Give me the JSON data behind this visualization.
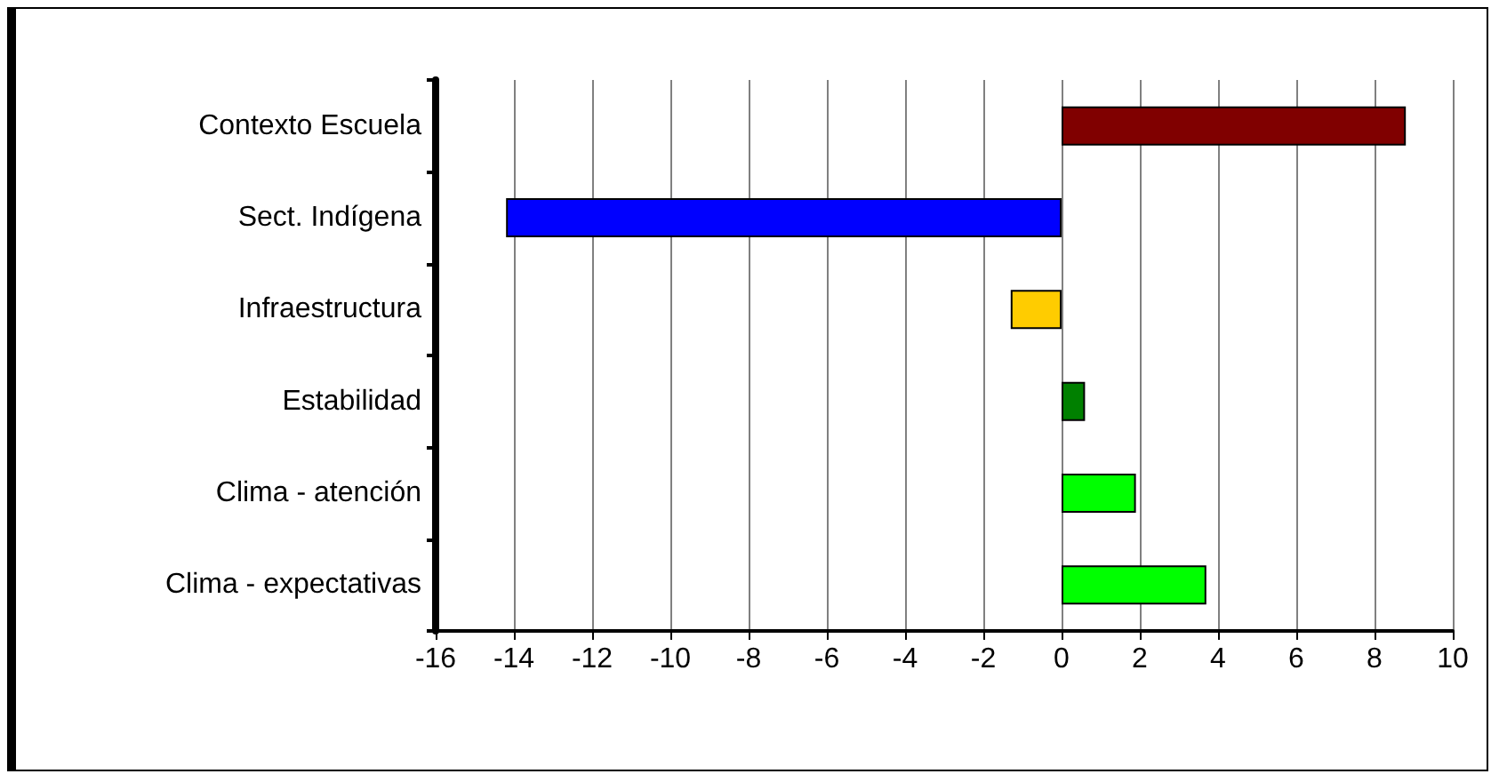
{
  "chart_data": {
    "type": "bar",
    "orientation": "horizontal",
    "categories": [
      "Contexto Escuela",
      "Sect. Indígena",
      "Infraestructura",
      "Estabilidad",
      "Clima - atención",
      "Clima - expectativas"
    ],
    "values": [
      8.8,
      -14.2,
      -1.3,
      0.6,
      1.9,
      3.7
    ],
    "colors": [
      "#800000",
      "#0000ff",
      "#ffcc00",
      "#008000",
      "#00ff00",
      "#00ff00"
    ],
    "xlim": [
      -16,
      10
    ],
    "xticks": [
      -16,
      -14,
      -12,
      -10,
      -8,
      -6,
      -4,
      -2,
      0,
      2,
      4,
      6,
      8,
      10
    ],
    "grid": "x"
  }
}
